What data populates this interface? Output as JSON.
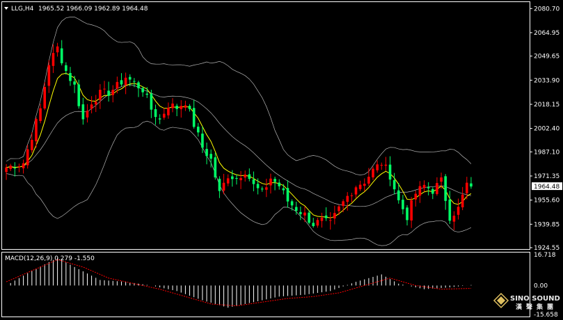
{
  "header": {
    "symbol": "LLG,H4",
    "ohlc": "1965.52 1966.09 1962.89 1964.48",
    "menu_icon": "triangle-down-icon"
  },
  "price_panel": {
    "current_price": 1964.48,
    "current_price_label": "1964.48",
    "y_ticks": [
      {
        "value": 2080.7,
        "label": "2080.70"
      },
      {
        "value": 2064.95,
        "label": "2064.95"
      },
      {
        "value": 2049.65,
        "label": "2049.65"
      },
      {
        "value": 2033.9,
        "label": "2033.90"
      },
      {
        "value": 2018.15,
        "label": "2018.15"
      },
      {
        "value": 2002.4,
        "label": "2002.40"
      },
      {
        "value": 1987.1,
        "label": "1987.10"
      },
      {
        "value": 1971.35,
        "label": "1971.35"
      },
      {
        "value": 1955.6,
        "label": "1955.60"
      },
      {
        "value": 1939.85,
        "label": "1939.85"
      },
      {
        "value": 1924.55,
        "label": "1924.55"
      }
    ]
  },
  "macd_panel": {
    "label": "MACD(12,26,9) 0.279 -1.550",
    "y_ticks": [
      {
        "value": 16.718,
        "label": "16.718"
      },
      {
        "value": 0.0,
        "label": "0.00"
      },
      {
        "value": -15.658,
        "label": "-15.658"
      }
    ]
  },
  "watermark": {
    "brand": "SINO SOUND",
    "sub": "漢聲集團"
  },
  "colors": {
    "background": "#000000",
    "bull_candle": "#ff0000",
    "bear_candle": "#00ff66",
    "moving_average": "#ffff00",
    "bollinger": "#b4b4b4",
    "macd_histogram": "#ffffff",
    "macd_signal": "#ff0000",
    "axis_text": "#ffffff"
  },
  "chart_data": {
    "type": "candlestick",
    "title": "LLG,H4",
    "ylim": [
      1924.55,
      2084.0
    ],
    "indicators": [
      "Bollinger Bands",
      "Moving Average",
      "MACD(12,26,9)"
    ],
    "macd_ylim": [
      -15.658,
      16.718
    ],
    "close_path": [
      [
        0,
        1977
      ],
      [
        4,
        1980
      ],
      [
        8,
        2015
      ],
      [
        10,
        2045
      ],
      [
        12,
        2055
      ],
      [
        14,
        2040
      ],
      [
        16,
        2030
      ],
      [
        18,
        2008
      ],
      [
        20,
        2020
      ],
      [
        22,
        2025
      ],
      [
        24,
        2026
      ],
      [
        26,
        2030
      ],
      [
        28,
        2036
      ],
      [
        30,
        2032
      ],
      [
        32,
        2028
      ],
      [
        34,
        2015
      ],
      [
        36,
        2008
      ],
      [
        38,
        2018
      ],
      [
        40,
        2016
      ],
      [
        42,
        2020
      ],
      [
        44,
        2005
      ],
      [
        46,
        1990
      ],
      [
        48,
        1982
      ],
      [
        50,
        1960
      ],
      [
        52,
        1972
      ],
      [
        54,
        1970
      ],
      [
        56,
        1975
      ],
      [
        58,
        1965
      ],
      [
        60,
        1960
      ],
      [
        62,
        1970
      ],
      [
        64,
        1965
      ],
      [
        66,
        1955
      ],
      [
        68,
        1950
      ],
      [
        70,
        1946
      ],
      [
        72,
        1940
      ],
      [
        74,
        1942
      ],
      [
        76,
        1940
      ],
      [
        78,
        1950
      ],
      [
        80,
        1958
      ],
      [
        82,
        1965
      ],
      [
        84,
        1968
      ],
      [
        86,
        1975
      ],
      [
        88,
        1980
      ],
      [
        90,
        1972
      ],
      [
        92,
        1955
      ],
      [
        94,
        1945
      ],
      [
        96,
        1960
      ],
      [
        98,
        1965
      ],
      [
        100,
        1962
      ],
      [
        102,
        1968
      ],
      [
        104,
        1945
      ],
      [
        106,
        1950
      ],
      [
        108,
        1966
      ],
      [
        109,
        1964.48
      ]
    ],
    "macd_path": [
      [
        0,
        0
      ],
      [
        6,
        8
      ],
      [
        12,
        15
      ],
      [
        16,
        10
      ],
      [
        22,
        3
      ],
      [
        28,
        2
      ],
      [
        34,
        0
      ],
      [
        40,
        -3
      ],
      [
        46,
        -8
      ],
      [
        52,
        -12
      ],
      [
        58,
        -9
      ],
      [
        64,
        -6
      ],
      [
        70,
        -5
      ],
      [
        76,
        -3
      ],
      [
        82,
        2
      ],
      [
        88,
        6
      ],
      [
        92,
        1
      ],
      [
        98,
        -2
      ],
      [
        104,
        -1
      ],
      [
        109,
        0.279
      ]
    ],
    "signal_path": [
      [
        0,
        2
      ],
      [
        6,
        8
      ],
      [
        12,
        14
      ],
      [
        18,
        10
      ],
      [
        24,
        4
      ],
      [
        30,
        1
      ],
      [
        36,
        -2
      ],
      [
        42,
        -6
      ],
      [
        48,
        -10
      ],
      [
        54,
        -11
      ],
      [
        60,
        -9
      ],
      [
        66,
        -7
      ],
      [
        72,
        -6
      ],
      [
        78,
        -4
      ],
      [
        84,
        0
      ],
      [
        90,
        4
      ],
      [
        96,
        0
      ],
      [
        102,
        -2
      ],
      [
        109,
        -1.55
      ]
    ]
  }
}
